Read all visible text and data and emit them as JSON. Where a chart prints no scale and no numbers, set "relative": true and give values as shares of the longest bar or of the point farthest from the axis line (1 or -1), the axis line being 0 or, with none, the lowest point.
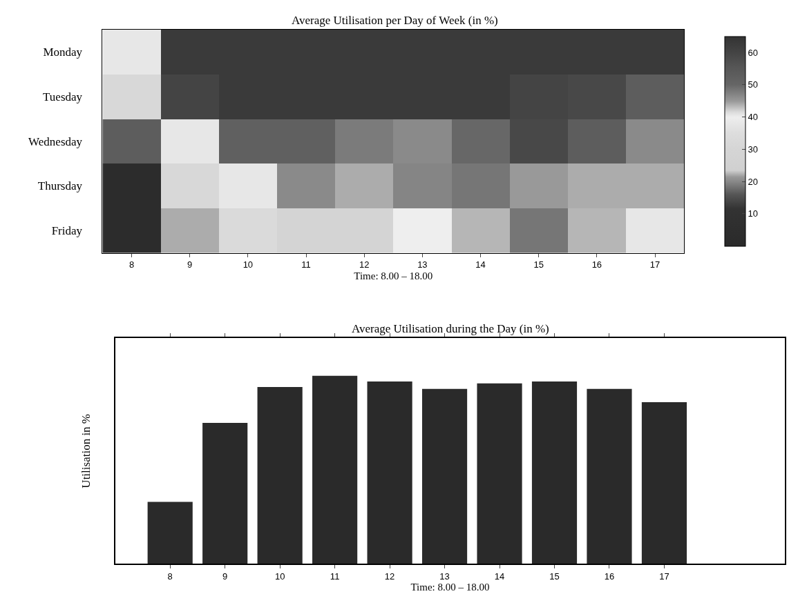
{
  "chart_data": [
    {
      "type": "heatmap",
      "title": "Average Utilisation per Day of Week (in %)",
      "xlabel": "Time: 8.00 – 18.00",
      "categories": [
        "8",
        "9",
        "10",
        "11",
        "12",
        "13",
        "14",
        "15",
        "16",
        "17"
      ],
      "y_categories": [
        "Monday",
        "Tuesday",
        "Wednesday",
        "Thursday",
        "Friday"
      ],
      "cells": [
        [
          38,
          63,
          63,
          63,
          63,
          63,
          63,
          63,
          63,
          63
        ],
        [
          32,
          60,
          63,
          63,
          63,
          63,
          63,
          60,
          59,
          53
        ],
        [
          53,
          38,
          52,
          52,
          48,
          46.5,
          50,
          59,
          53,
          46.5
        ],
        [
          3,
          32,
          38,
          46.5,
          44,
          47,
          48.5,
          45,
          44,
          44
        ],
        [
          3,
          44,
          33,
          28,
          28,
          40,
          43.5,
          48.5,
          43.5,
          38
        ]
      ],
      "clim": [
        0,
        65
      ],
      "cticks": [
        10,
        20,
        30,
        40,
        50,
        60
      ]
    },
    {
      "type": "bar",
      "title": "Average Utilisation during the Day (in %)",
      "xlabel": "Time: 8.00 – 18.00",
      "ylabel": "Utilisation in %",
      "categories": [
        "8",
        "9",
        "10",
        "11",
        "12",
        "13",
        "14",
        "15",
        "16",
        "17"
      ],
      "values": [
        0.33,
        0.75,
        0.94,
        1,
        0.97,
        0.93,
        0.96,
        0.97,
        0.93,
        0.86
      ],
      "color": "#2a2a2a",
      "relative": true
    }
  ]
}
